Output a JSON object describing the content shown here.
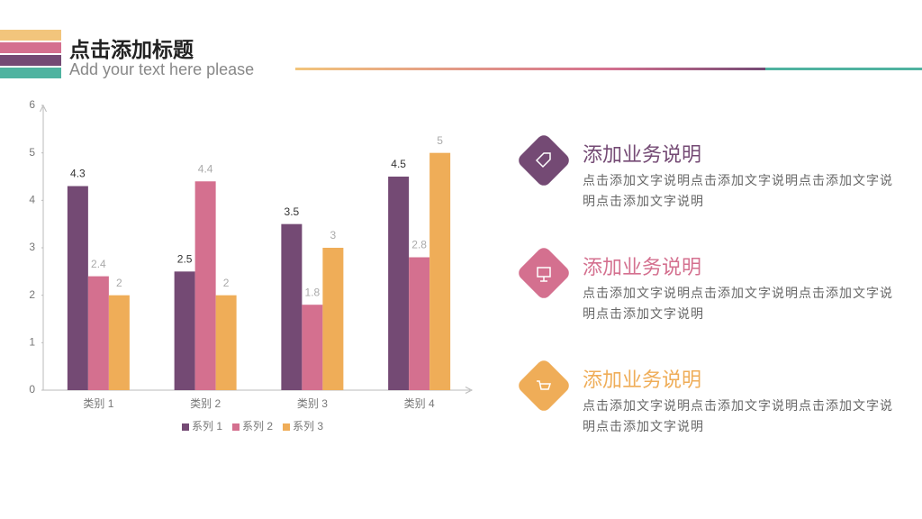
{
  "header": {
    "title": "点击添加标题",
    "subtitle": "Add your text here please"
  },
  "chart_data": {
    "type": "bar",
    "categories": [
      "类别 1",
      "类别 2",
      "类别 3",
      "类别 4"
    ],
    "series": [
      {
        "name": "系列 1",
        "color": "#744a74",
        "values": [
          4.3,
          2.5,
          3.5,
          4.5
        ]
      },
      {
        "name": "系列 2",
        "color": "#d4708f",
        "values": [
          2.4,
          4.4,
          1.8,
          2.8
        ]
      },
      {
        "name": "系列 3",
        "color": "#efad58",
        "values": [
          2,
          2,
          3,
          5
        ]
      }
    ],
    "ylim": [
      0,
      6
    ],
    "yticks": [
      0,
      1,
      2,
      3,
      4,
      5,
      6
    ],
    "legend": "bottom"
  },
  "items": [
    {
      "title": "添加业务说明",
      "text": "点击添加文字说明点击添加文字说明点击添加文字说明点击添加文字说明",
      "color": "#744a74"
    },
    {
      "title": "添加业务说明",
      "text": "点击添加文字说明点击添加文字说明点击添加文字说明点击添加文字说明",
      "color": "#d4708f"
    },
    {
      "title": "添加业务说明",
      "text": "点击添加文字说明点击添加文字说明点击添加文字说明点击添加文字说明",
      "color": "#efad58"
    }
  ]
}
